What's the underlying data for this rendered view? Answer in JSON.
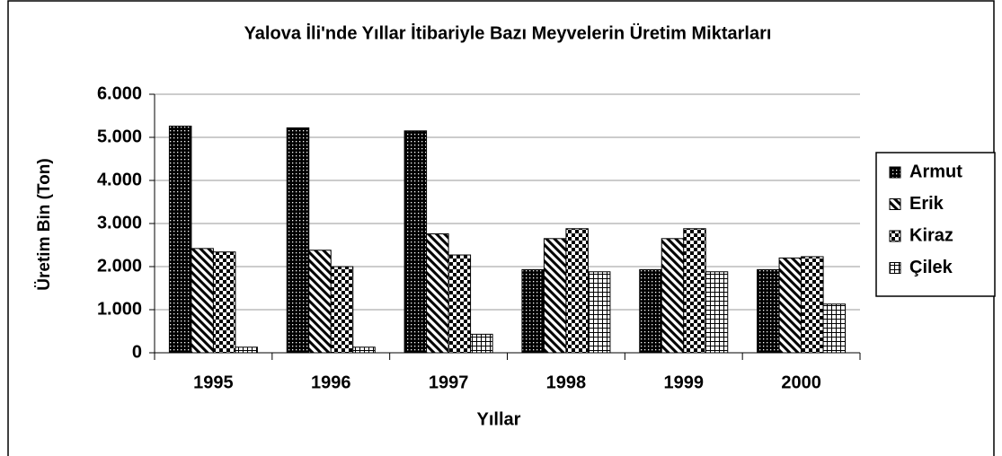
{
  "chart_data": {
    "type": "bar",
    "title": "Yalova İli'nde Yıllar İtibariyle Bazı Meyvelerin Üretim Miktarları",
    "x_label": "Yıllar",
    "y_label": "Üretim Bin (Ton)",
    "categories": [
      "1995",
      "1996",
      "1997",
      "1998",
      "1999",
      "2000"
    ],
    "series": [
      {
        "name": "Armut",
        "color": "#000000",
        "pattern": "dots",
        "values": [
          5260,
          5220,
          5150,
          1930,
          1930,
          1930
        ]
      },
      {
        "name": "Erik",
        "color": "#000000",
        "pattern": "diagonal",
        "values": [
          2420,
          2380,
          2760,
          2650,
          2650,
          2200
        ]
      },
      {
        "name": "Kiraz",
        "color": "#000000",
        "pattern": "checker",
        "values": [
          2340,
          2000,
          2270,
          2880,
          2880,
          2230
        ]
      },
      {
        "name": "Çilek",
        "color": "#000000",
        "pattern": "grid",
        "values": [
          130,
          130,
          430,
          1880,
          1880,
          1130
        ]
      }
    ],
    "ylim": [
      0,
      6000
    ],
    "yticks": [
      0,
      {
        "value": 1000,
        "label": "1.000"
      },
      {
        "value": 2000,
        "label": "2.000"
      },
      {
        "value": 3000,
        "label": "3.000"
      },
      {
        "value": 4000,
        "label": "4.000"
      },
      {
        "value": 5000,
        "label": "5.000"
      },
      {
        "value": 6000,
        "label": "6.000"
      }
    ],
    "grid": true,
    "legend": "right"
  }
}
